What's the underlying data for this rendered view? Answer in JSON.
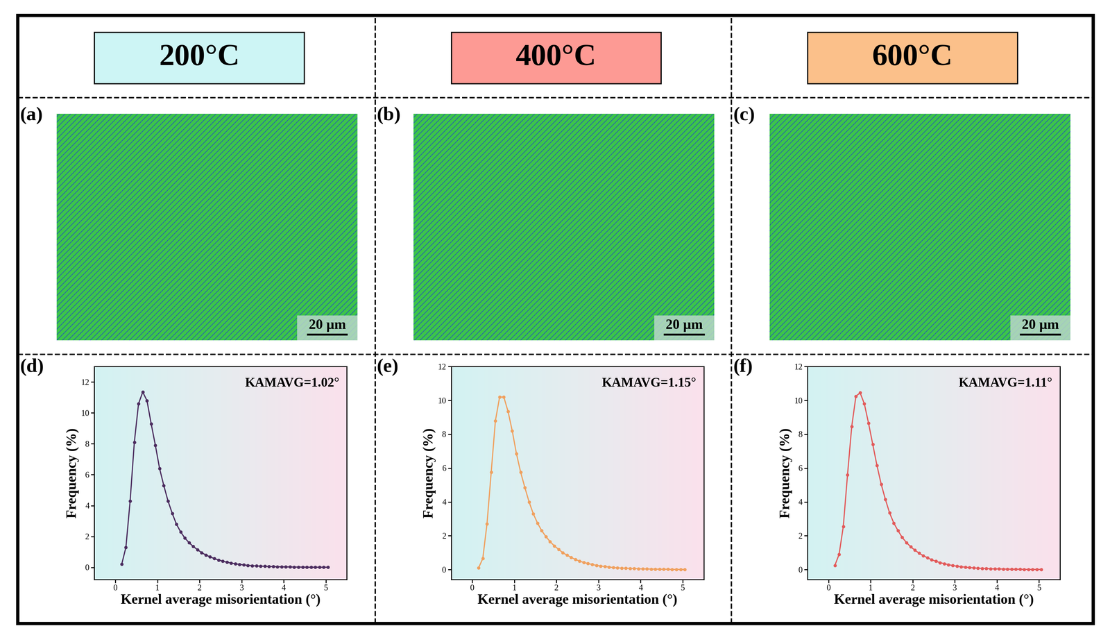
{
  "headers": [
    "200°C",
    "400°C",
    "600°C"
  ],
  "maps": [
    {
      "label": "(a)",
      "scale_bar": "20 µm"
    },
    {
      "label": "(b)",
      "scale_bar": "20 µm"
    },
    {
      "label": "(c)",
      "scale_bar": "20 µm"
    }
  ],
  "chart_data": [
    {
      "type": "line",
      "annotations": [
        "(d)",
        "KAMAVG=1.02°"
      ],
      "x_label": "Kernel average misorientation (°)",
      "y_label": "Frequency (%)",
      "x": [
        0.15,
        0.25,
        0.35,
        0.45,
        0.55,
        0.65,
        0.75,
        0.85,
        0.95,
        1.05,
        1.15,
        1.25,
        1.35,
        1.45,
        1.55,
        1.65,
        1.75,
        1.85,
        1.95,
        2.05,
        2.15,
        2.25,
        2.35,
        2.45,
        2.55,
        2.65,
        2.75,
        2.85,
        2.95,
        3.05,
        3.15,
        3.25,
        3.35,
        3.45,
        3.55,
        3.65,
        3.75,
        3.85,
        3.95,
        4.05,
        4.15,
        4.25,
        4.35,
        4.45,
        4.55,
        4.65,
        4.75,
        4.85,
        4.95,
        5.05
      ],
      "values": [
        0.2,
        1.3,
        4.3,
        8.1,
        10.6,
        11.35,
        10.8,
        9.3,
        7.9,
        6.4,
        5.3,
        4.3,
        3.5,
        2.8,
        2.3,
        1.9,
        1.6,
        1.35,
        1.15,
        0.95,
        0.8,
        0.68,
        0.57,
        0.48,
        0.4,
        0.33,
        0.28,
        0.23,
        0.19,
        0.16,
        0.13,
        0.11,
        0.09,
        0.08,
        0.07,
        0.06,
        0.05,
        0.04,
        0.04,
        0.03,
        0.03,
        0.02,
        0.02,
        0.02,
        0.01,
        0.01,
        0.01,
        0.01,
        0.01,
        0.01
      ],
      "color": "#4b2c5e",
      "marker": "o",
      "line_style": "solid",
      "xlim": [
        -0.5,
        5.5
      ],
      "ylim": [
        -0.8,
        13
      ],
      "xticks": [
        0,
        1,
        2,
        3,
        4,
        5
      ],
      "yticks": [
        0,
        2,
        4,
        6,
        8,
        10,
        12
      ]
    },
    {
      "type": "line",
      "annotations": [
        "(e)",
        "KAMAVG=1.15°"
      ],
      "x_label": "Kernel average misorientation (°)",
      "y_label": "Frequency (%)",
      "x": [
        0.15,
        0.25,
        0.35,
        0.45,
        0.55,
        0.65,
        0.75,
        0.85,
        0.95,
        1.05,
        1.15,
        1.25,
        1.35,
        1.45,
        1.55,
        1.65,
        1.75,
        1.85,
        1.95,
        2.05,
        2.15,
        2.25,
        2.35,
        2.45,
        2.55,
        2.65,
        2.75,
        2.85,
        2.95,
        3.05,
        3.15,
        3.25,
        3.35,
        3.45,
        3.55,
        3.65,
        3.75,
        3.85,
        3.95,
        4.05,
        4.15,
        4.25,
        4.35,
        4.45,
        4.55,
        4.65,
        4.75,
        4.85,
        4.95,
        5.05
      ],
      "values": [
        0.1,
        0.65,
        2.7,
        5.75,
        8.8,
        10.2,
        10.2,
        9.35,
        8.2,
        6.85,
        5.75,
        4.85,
        4.0,
        3.3,
        2.75,
        2.3,
        1.95,
        1.65,
        1.4,
        1.2,
        1.0,
        0.85,
        0.72,
        0.6,
        0.5,
        0.42,
        0.36,
        0.3,
        0.25,
        0.21,
        0.18,
        0.15,
        0.12,
        0.1,
        0.09,
        0.08,
        0.07,
        0.06,
        0.05,
        0.04,
        0.04,
        0.03,
        0.03,
        0.02,
        0.02,
        0.02,
        0.01,
        0.01,
        0.01,
        0.01
      ],
      "color": "#f0a05e",
      "marker": "o",
      "line_style": "solid",
      "xlim": [
        -0.5,
        5.5
      ],
      "ylim": [
        -0.6,
        12
      ],
      "xticks": [
        0,
        1,
        2,
        3,
        4,
        5
      ],
      "yticks": [
        0,
        2,
        4,
        6,
        8,
        10,
        12
      ]
    },
    {
      "type": "line",
      "annotations": [
        "(f)",
        "KAMAVG=1.11°"
      ],
      "x_label": "Kernel average misorientation (°)",
      "y_label": "Frequency (%)",
      "x": [
        0.15,
        0.25,
        0.35,
        0.45,
        0.55,
        0.65,
        0.75,
        0.85,
        0.95,
        1.05,
        1.15,
        1.25,
        1.35,
        1.45,
        1.55,
        1.65,
        1.75,
        1.85,
        1.95,
        2.05,
        2.15,
        2.25,
        2.35,
        2.45,
        2.55,
        2.65,
        2.75,
        2.85,
        2.95,
        3.05,
        3.15,
        3.25,
        3.35,
        3.45,
        3.55,
        3.65,
        3.75,
        3.85,
        3.95,
        4.05,
        4.15,
        4.25,
        4.35,
        4.45,
        4.55,
        4.65,
        4.75,
        4.85,
        4.95,
        5.05
      ],
      "values": [
        0.25,
        0.9,
        2.55,
        5.6,
        8.45,
        10.25,
        10.45,
        9.8,
        8.65,
        7.4,
        6.15,
        5.05,
        4.15,
        3.35,
        2.75,
        2.3,
        1.9,
        1.6,
        1.35,
        1.15,
        0.97,
        0.82,
        0.7,
        0.58,
        0.49,
        0.41,
        0.35,
        0.29,
        0.24,
        0.2,
        0.17,
        0.14,
        0.12,
        0.1,
        0.08,
        0.07,
        0.06,
        0.05,
        0.04,
        0.04,
        0.03,
        0.03,
        0.02,
        0.02,
        0.02,
        0.01,
        0.01,
        0.01,
        0.01,
        0.01
      ],
      "color": "#e25a5a",
      "marker": "o",
      "line_style": "solid",
      "xlim": [
        -0.5,
        5.5
      ],
      "ylim": [
        -0.6,
        12
      ],
      "xticks": [
        0,
        1,
        2,
        3,
        4,
        5
      ],
      "yticks": [
        0,
        2,
        4,
        6,
        8,
        10,
        12
      ]
    }
  ]
}
